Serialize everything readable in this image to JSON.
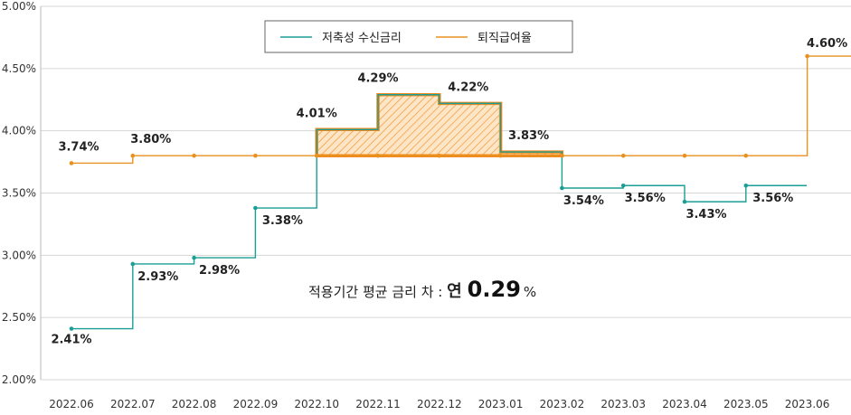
{
  "chart_data": {
    "type": "line",
    "step": true,
    "categories": [
      "2022.06",
      "2022.07",
      "2022.08",
      "2022.09",
      "2022.10",
      "2022.11",
      "2022.12",
      "2023.01",
      "2023.02",
      "2023.03",
      "2023.04",
      "2023.05",
      "2023.06"
    ],
    "ylim": [
      2.0,
      5.0
    ],
    "yticks": [
      "2.00%",
      "2.50%",
      "3.00%",
      "3.50%",
      "4.00%",
      "4.50%",
      "5.00%"
    ],
    "ytick_values": [
      2.0,
      2.5,
      3.0,
      3.5,
      4.0,
      4.5,
      5.0
    ],
    "grid": true,
    "legend_position": "top-center",
    "series": [
      {
        "name": "저축성 수신금리",
        "color": "#1a9e95",
        "values": [
          2.41,
          2.93,
          2.98,
          3.38,
          4.01,
          4.29,
          4.22,
          3.83,
          3.54,
          3.56,
          3.43,
          3.56,
          null
        ],
        "labels": [
          "2.41%",
          "2.93%",
          "2.98%",
          "3.38%",
          "4.01%",
          "4.29%",
          "4.22%",
          "3.83%",
          "3.54%",
          "3.56%",
          "3.43%",
          "3.56%",
          ""
        ]
      },
      {
        "name": "퇴직급여율",
        "color": "#e8911e",
        "values": [
          3.74,
          3.8,
          3.8,
          3.8,
          3.8,
          3.8,
          3.8,
          3.8,
          3.8,
          3.8,
          3.8,
          3.8,
          4.6
        ],
        "labels": [
          "3.74%",
          "3.80%",
          "",
          "",
          "",
          "",
          "",
          "",
          "",
          "",
          "",
          "",
          "4.60%"
        ]
      }
    ],
    "highlight": {
      "from": "2022.10",
      "to": "2023.01",
      "color": "#f08a1e",
      "fill": "hatched"
    },
    "annotation": {
      "prefix": "적용기간 평균 금리 차 : ",
      "word": "연",
      "value": "0.29",
      "unit": "%"
    }
  }
}
